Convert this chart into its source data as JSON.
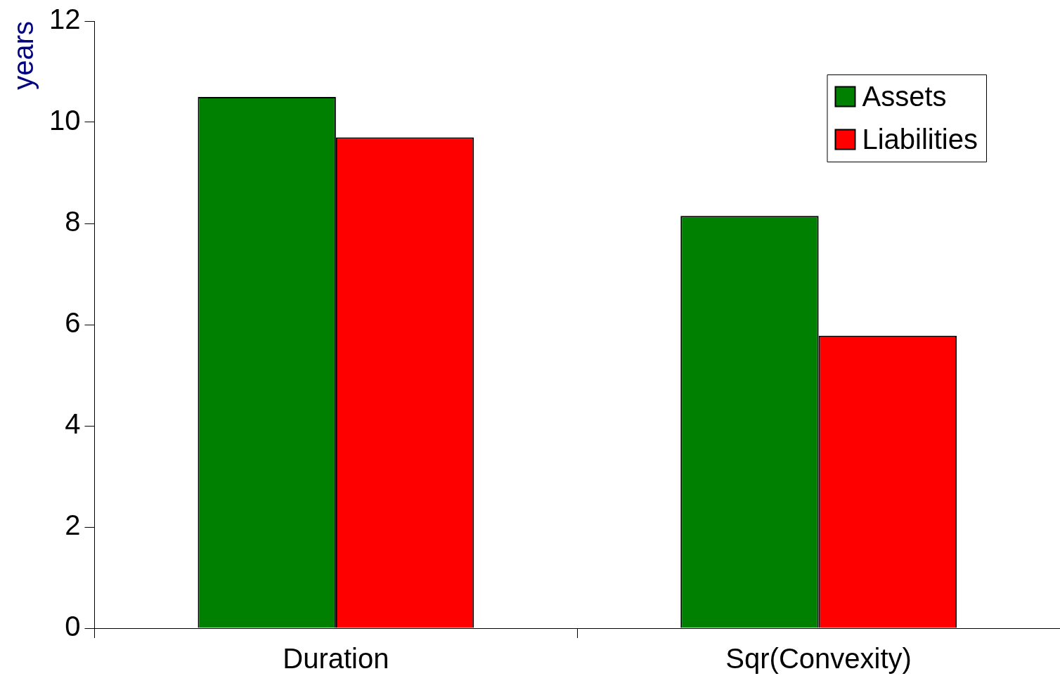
{
  "chart_data": {
    "type": "bar",
    "ylabel": "years",
    "categories": [
      "Duration",
      "Sqr(Convexity)"
    ],
    "series": [
      {
        "name": "Assets",
        "color": "#008000",
        "values": [
          10.5,
          8.15
        ]
      },
      {
        "name": "Liabilities",
        "color": "#ff0000",
        "values": [
          9.7,
          5.78
        ]
      }
    ],
    "ylim": [
      0,
      12
    ],
    "yticks": [
      0,
      2,
      4,
      6,
      8,
      10,
      12
    ],
    "grid": false,
    "legend": "top right"
  }
}
